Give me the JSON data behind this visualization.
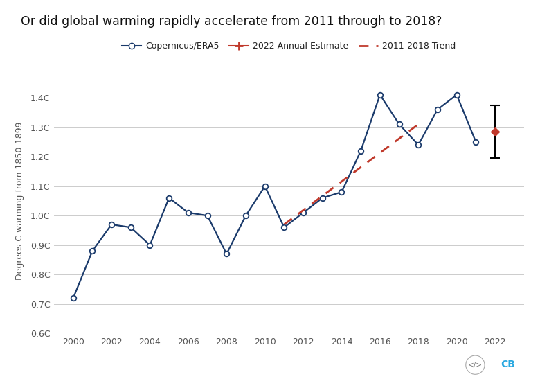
{
  "title": "Or did global warming rapidly accelerate from 2011 through to 2018?",
  "ylabel": "Degrees C warming from 1850-1899",
  "background_color": "#ffffff",
  "plot_bg_color": "#ffffff",
  "years": [
    2000,
    2001,
    2002,
    2003,
    2004,
    2005,
    2006,
    2007,
    2008,
    2009,
    2010,
    2011,
    2012,
    2013,
    2014,
    2015,
    2016,
    2017,
    2018,
    2019,
    2020,
    2021
  ],
  "values": [
    0.72,
    0.88,
    0.97,
    0.96,
    0.9,
    1.06,
    1.01,
    1.0,
    0.87,
    1.0,
    1.1,
    0.96,
    1.01,
    1.06,
    1.08,
    1.22,
    1.41,
    1.31,
    1.24,
    1.36,
    1.41,
    1.25
  ],
  "main_line_color": "#1a3a6b",
  "main_marker_color": "#ffffff",
  "main_marker_edge": "#1a3a6b",
  "trend_x": [
    2011,
    2018
  ],
  "trend_y": [
    0.97,
    1.31
  ],
  "trend_color": "#c0392b",
  "estimate_year": 2022,
  "estimate_value": 1.285,
  "estimate_error_upper": 0.09,
  "estimate_error_lower": 0.09,
  "estimate_color": "#c0392b",
  "ylim": [
    0.6,
    1.5
  ],
  "yticks": [
    0.6,
    0.7,
    0.8,
    0.9,
    1.0,
    1.1,
    1.2,
    1.3,
    1.4
  ],
  "ytick_labels": [
    "0.6C",
    "0.7C",
    "0.8C",
    "0.9C",
    "1.0C",
    "1.1C",
    "1.2C",
    "1.3C",
    "1.4C"
  ],
  "xlim": [
    1999,
    2023.5
  ],
  "xticks": [
    2000,
    2002,
    2004,
    2006,
    2008,
    2010,
    2012,
    2014,
    2016,
    2018,
    2020,
    2022
  ],
  "grid_color": "#cccccc",
  "title_fontsize": 12.5,
  "label_fontsize": 9,
  "tick_fontsize": 9
}
